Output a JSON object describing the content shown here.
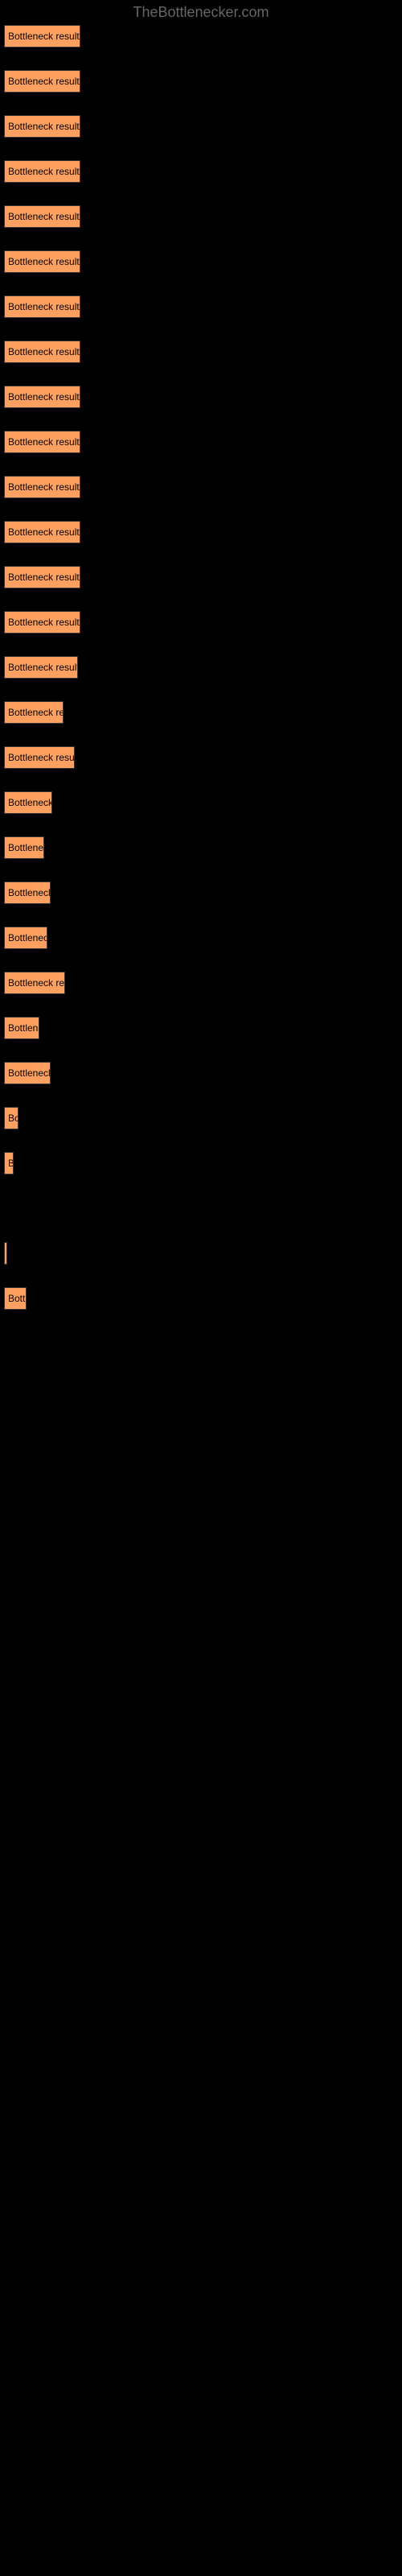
{
  "site_name": "TheBottlenecker.com",
  "chart": {
    "type": "bar",
    "background_color": "#000000",
    "bar_color": "#ffa060",
    "bar_border_color": "#333333",
    "label_color": "#000000",
    "label_fontsize": 12,
    "bars": [
      {
        "label": "Bottleneck result",
        "width": 95
      },
      {
        "label": "Bottleneck result",
        "width": 95
      },
      {
        "label": "Bottleneck result",
        "width": 95
      },
      {
        "label": "Bottleneck result",
        "width": 95
      },
      {
        "label": "Bottleneck result",
        "width": 95
      },
      {
        "label": "Bottleneck result",
        "width": 95
      },
      {
        "label": "Bottleneck result",
        "width": 95
      },
      {
        "label": "Bottleneck result",
        "width": 95
      },
      {
        "label": "Bottleneck result",
        "width": 95
      },
      {
        "label": "Bottleneck result",
        "width": 95
      },
      {
        "label": "Bottleneck result",
        "width": 95
      },
      {
        "label": "Bottleneck result",
        "width": 95
      },
      {
        "label": "Bottleneck result",
        "width": 95
      },
      {
        "label": "Bottleneck result",
        "width": 95
      },
      {
        "label": "Bottleneck result",
        "width": 92
      },
      {
        "label": "Bottleneck re",
        "width": 74
      },
      {
        "label": "Bottleneck resu",
        "width": 88
      },
      {
        "label": "Bottleneck",
        "width": 60
      },
      {
        "label": "Bottlene",
        "width": 50
      },
      {
        "label": "Bottleneck",
        "width": 58
      },
      {
        "label": "Bottlenec",
        "width": 54
      },
      {
        "label": "Bottleneck re",
        "width": 76
      },
      {
        "label": "Bottlen",
        "width": 44
      },
      {
        "label": "Bottleneck",
        "width": 58
      },
      {
        "label": "Bo",
        "width": 18
      },
      {
        "label": "B",
        "width": 12
      },
      {
        "label": "",
        "width": 0
      },
      {
        "label": "",
        "width": 4
      },
      {
        "label": "Bott",
        "width": 28
      }
    ]
  }
}
